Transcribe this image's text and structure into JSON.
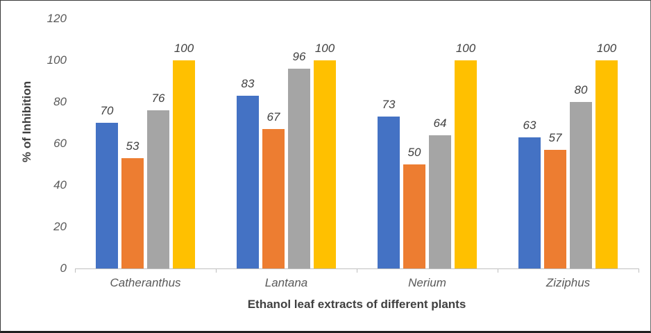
{
  "chart_data": {
    "type": "bar",
    "title": "",
    "categories": [
      "Catheranthus",
      "Lantana",
      "Nerium",
      "Ziziphus"
    ],
    "series": [
      {
        "name": "blue",
        "color": "#4472C4",
        "values": [
          70,
          83,
          73,
          63
        ]
      },
      {
        "name": "orange",
        "color": "#ED7D31",
        "values": [
          53,
          67,
          50,
          57
        ]
      },
      {
        "name": "gray",
        "color": "#A5A5A5",
        "values": [
          76,
          96,
          64,
          80
        ]
      },
      {
        "name": "yellow",
        "color": "#FFC000",
        "values": [
          100,
          100,
          100,
          100
        ]
      }
    ],
    "xlabel": "Ethanol leaf extracts of different plants",
    "ylabel": "% of Inhibition",
    "ylim": [
      0,
      120
    ],
    "yticks": [
      0,
      20,
      40,
      60,
      80,
      100,
      120
    ],
    "grid": false,
    "legend": "none",
    "data_labels": true,
    "tick_label_color": "#595959",
    "data_label_color": "#404040",
    "axis_title_color": "#404040",
    "axis_line_color": "#BFBFBF"
  }
}
